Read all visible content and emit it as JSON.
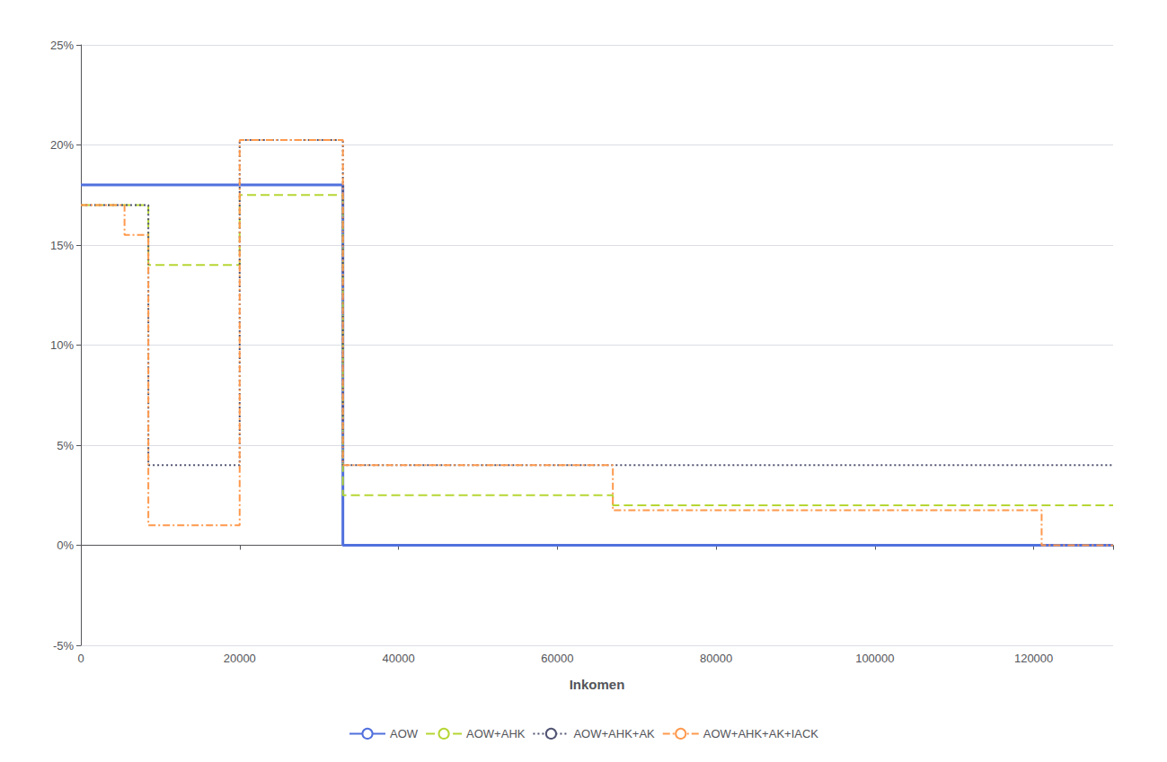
{
  "chart_data": {
    "type": "line",
    "xlabel": "Inkomen",
    "xlim": [
      0,
      130000
    ],
    "xticks": [
      0,
      20000,
      40000,
      60000,
      80000,
      100000,
      120000
    ],
    "ylim": [
      -0.05,
      0.25
    ],
    "yticks": [
      {
        "value": -0.05,
        "label": "-5%"
      },
      {
        "value": 0.0,
        "label": "0%"
      },
      {
        "value": 0.05,
        "label": "5%"
      },
      {
        "value": 0.1,
        "label": "10%"
      },
      {
        "value": 0.15,
        "label": "15%"
      },
      {
        "value": 0.2,
        "label": "20%"
      },
      {
        "value": 0.25,
        "label": "25%"
      }
    ],
    "grid": true,
    "legend": "bottom",
    "series": [
      {
        "name": "AOW",
        "line_style": "solid",
        "x": [
          0,
          33000,
          33000,
          130000
        ],
        "values": [
          0.18,
          0.18,
          0.0,
          0.0
        ]
      },
      {
        "name": "AOW+AHK",
        "line_style": "dashed",
        "x": [
          0,
          8500,
          8500,
          20000,
          20000,
          33000,
          33000,
          67000,
          67000,
          130000
        ],
        "values": [
          0.17,
          0.17,
          0.14,
          0.14,
          0.175,
          0.175,
          0.025,
          0.025,
          0.02,
          0.02
        ]
      },
      {
        "name": "AOW+AHK+AK",
        "line_style": "dotted",
        "x": [
          0,
          8500,
          8500,
          20000,
          20000,
          33000,
          33000,
          130000
        ],
        "values": [
          0.17,
          0.17,
          0.04,
          0.04,
          0.2025,
          0.2025,
          0.04,
          0.04
        ]
      },
      {
        "name": "AOW+AHK+AK+IACK",
        "line_style": "dashdot",
        "x": [
          0,
          5500,
          5500,
          8500,
          8500,
          20000,
          20000,
          33000,
          33000,
          67000,
          67000,
          121000,
          121000,
          130000
        ],
        "values": [
          0.17,
          0.17,
          0.155,
          0.155,
          0.01,
          0.01,
          0.2025,
          0.2025,
          0.04,
          0.04,
          0.0175,
          0.0175,
          0.0,
          0.0
        ]
      }
    ]
  }
}
